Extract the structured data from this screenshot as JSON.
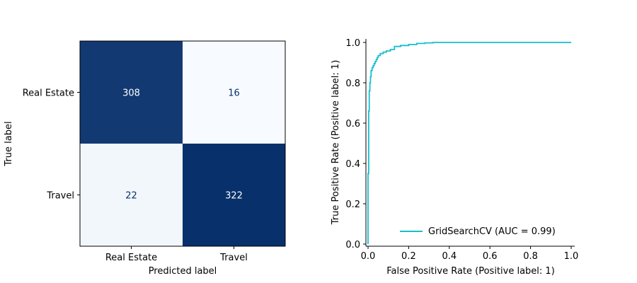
{
  "chart_data": [
    {
      "type": "heatmap",
      "title": "",
      "xlabel": "Predicted label",
      "ylabel": "True label",
      "categories_x": [
        "Real Estate",
        "Travel"
      ],
      "categories_y": [
        "Real Estate",
        "Travel"
      ],
      "matrix": [
        [
          308,
          16
        ],
        [
          22,
          322
        ]
      ],
      "colormap": "Blues",
      "grid": false
    },
    {
      "type": "line",
      "title": "",
      "xlabel": "False Positive Rate (Positive label: 1)",
      "ylabel": "True Positive Rate (Positive label: 1)",
      "xlim": [
        0.0,
        1.0
      ],
      "ylim": [
        0.0,
        1.0
      ],
      "xticks": [
        "0.0",
        "0.2",
        "0.4",
        "0.6",
        "0.8",
        "1.0"
      ],
      "yticks": [
        "0.0",
        "0.2",
        "0.4",
        "0.6",
        "0.8",
        "1.0"
      ],
      "legend_position": "lower-right",
      "grid": false,
      "series": [
        {
          "name": "GridSearchCV (AUC = 0.99)",
          "color": "#17becf",
          "x": [
            0.0,
            0.0,
            0.003,
            0.003,
            0.006,
            0.006,
            0.009,
            0.009,
            0.012,
            0.012,
            0.015,
            0.015,
            0.02,
            0.02,
            0.025,
            0.025,
            0.03,
            0.03,
            0.035,
            0.035,
            0.04,
            0.04,
            0.045,
            0.045,
            0.05,
            0.05,
            0.06,
            0.06,
            0.075,
            0.075,
            0.09,
            0.09,
            0.11,
            0.11,
            0.13,
            0.13,
            0.16,
            0.16,
            0.2,
            0.2,
            0.24,
            0.24,
            0.28,
            0.28,
            0.32,
            0.32,
            1.0
          ],
          "y": [
            0.0,
            0.35,
            0.35,
            0.66,
            0.66,
            0.76,
            0.76,
            0.8,
            0.8,
            0.83,
            0.83,
            0.86,
            0.86,
            0.875,
            0.875,
            0.885,
            0.885,
            0.895,
            0.895,
            0.905,
            0.905,
            0.915,
            0.915,
            0.925,
            0.925,
            0.935,
            0.935,
            0.945,
            0.945,
            0.952,
            0.952,
            0.958,
            0.958,
            0.965,
            0.965,
            0.98,
            0.98,
            0.985,
            0.985,
            0.99,
            0.99,
            0.995,
            0.995,
            0.998,
            0.998,
            1.0,
            1.0
          ]
        }
      ]
    }
  ]
}
